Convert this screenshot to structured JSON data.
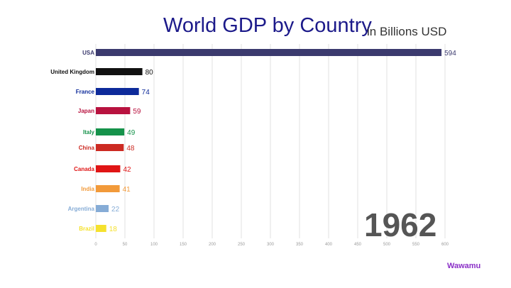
{
  "title": "World GDP by Country",
  "subtitle": "in Billions USD",
  "year": "1962",
  "brand": "Wawamu",
  "chart_data": {
    "type": "bar",
    "orientation": "horizontal",
    "title": "World GDP by Country",
    "subtitle": "in Billions USD",
    "categories": [
      "USA",
      "United Kingdom",
      "France",
      "Japan",
      "Italy",
      "China",
      "Canada",
      "India",
      "Argentina",
      "Brazil"
    ],
    "values": [
      594,
      80,
      74,
      59,
      49,
      48,
      42,
      41,
      22,
      18
    ],
    "value_labels": [
      "594",
      "80",
      "74",
      "59",
      "49",
      "48",
      "42",
      "41",
      "22",
      "18"
    ],
    "colors": [
      "#3b3a6e",
      "#111111",
      "#0d2a9a",
      "#b8123f",
      "#15924a",
      "#cc2a22",
      "#e01515",
      "#f29a3a",
      "#86acd6",
      "#f5e12e"
    ],
    "xlim": [
      0,
      600
    ],
    "xticks": [
      0,
      50,
      100,
      150,
      200,
      250,
      300,
      350,
      400,
      450,
      500,
      550,
      600
    ],
    "xtick_labels": [
      "0",
      "50",
      "100",
      "150",
      "200",
      "250",
      "300",
      "350",
      "400",
      "450",
      "500",
      "550",
      "600"
    ],
    "grid": true,
    "xlabel": "",
    "ylabel": ""
  }
}
